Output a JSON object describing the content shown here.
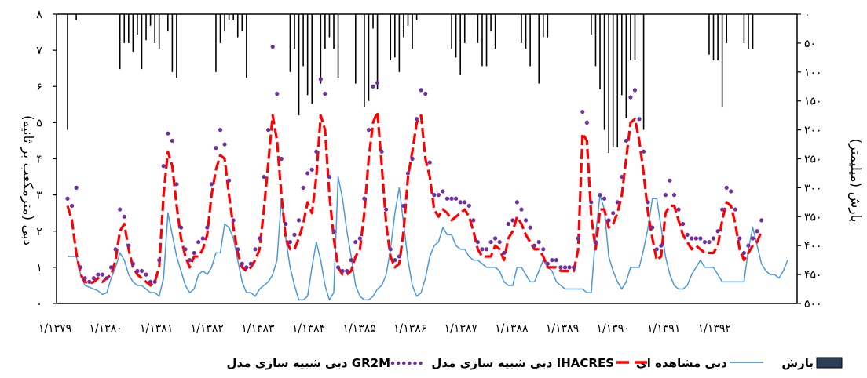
{
  "chart_data": {
    "type": "line",
    "title": "",
    "ylabel_left": "دبی (مترمکعب بر ثانیه)",
    "ylabel_right": "بارش (میلیمتر)",
    "ylim_left": [
      0,
      8
    ],
    "ylim_right_inverted": [
      0,
      500
    ],
    "yticks_left": [
      "۰",
      "۱",
      "۲",
      "۳",
      "۴",
      "۵",
      "۶",
      "۷",
      "۸"
    ],
    "yticks_right": [
      "۰",
      "۵۰",
      "۱۰۰",
      "۱۵۰",
      "۲۰۰",
      "۲۵۰",
      "۳۰۰",
      "۳۵۰",
      "۴۰۰",
      "۴۵۰",
      "۵۰۰"
    ],
    "x_tick_labels": [
      "۱/۱۳۷۹",
      "۱/۱۳۸۰",
      "۱/۱۳۸۱",
      "۱/۱۳۸۲",
      "۱/۱۳۸۳",
      "۱/۱۳۸۴",
      "۱/۱۳۸۵",
      "۱/۱۳۸۶",
      "۱/۱۳۸۷",
      "۱/۱۳۸۸",
      "۱/۱۳۸۹",
      "۱/۱۳۹۰",
      "۱/۱۳۹۱",
      "۱/۱۳۹۲"
    ],
    "legend": {
      "gr2m": "دبی شبیه سازی مدل GR2M",
      "ihacres": "دبی شبیه سازی مدل IHACRES",
      "observed": "دبی مشاهده ای",
      "rain": "بارش"
    },
    "colors": {
      "observed": "#4a98e0",
      "ihacres": "#ff0000",
      "gr2m": "#7030a0",
      "rain": "#000000",
      "legend_rain_fill": "#2c3e5a"
    },
    "grid": false,
    "series": [
      {
        "name": "دبی مشاهده ای",
        "values": [
          1.3,
          1.3,
          1.3,
          0.8,
          0.5,
          0.45,
          0.4,
          0.35,
          0.25,
          0.3,
          0.7,
          1.0,
          1.4,
          1.2,
          0.8,
          0.6,
          0.5,
          0.5,
          0.4,
          0.3,
          0.3,
          0.2,
          0.7,
          2.5,
          1.9,
          1.3,
          0.9,
          0.5,
          0.3,
          0.4,
          0.8,
          0.9,
          0.8,
          1.0,
          1.4,
          1.4,
          2.2,
          2.1,
          1.8,
          1.2,
          0.6,
          0.3,
          0.3,
          0.2,
          0.4,
          0.5,
          0.6,
          0.8,
          1.2,
          2.9,
          1.8,
          1.0,
          0.5,
          0.1,
          0.1,
          0.2,
          1.0,
          1.7,
          1.2,
          0.5,
          0.1,
          0.3,
          3.5,
          2.9,
          2.0,
          1.3,
          0.5,
          0.2,
          0.1,
          0.1,
          0.2,
          0.4,
          0.5,
          0.8,
          1.5,
          2.5,
          3.2,
          2.2,
          1.2,
          0.5,
          0.2,
          0.3,
          0.7,
          1.3,
          1.6,
          1.7,
          2.1,
          1.9,
          1.9,
          1.6,
          1.5,
          1.5,
          1.3,
          1.2,
          1.2,
          1.1,
          1.0,
          1.0,
          1.0,
          0.9,
          0.6,
          0.5,
          0.5,
          1.0,
          1.0,
          0.8,
          0.6,
          0.6,
          0.9,
          1.2,
          1.0,
          0.9,
          0.6,
          0.5,
          0.4,
          0.4,
          0.4,
          0.4,
          0.4,
          0.3,
          0.3,
          1.9,
          3.0,
          2.6,
          1.3,
          0.9,
          0.6,
          0.4,
          0.6,
          1.0,
          1.0,
          1.0,
          1.5,
          2.1,
          2.9,
          2.9,
          2.1,
          1.3,
          0.8,
          0.5,
          0.4,
          0.4,
          0.5,
          0.8,
          1.0,
          1.2,
          1.0,
          1.0,
          1.0,
          0.8,
          0.6,
          0.6,
          0.6,
          0.6,
          0.6,
          0.6,
          1.5,
          2.1,
          1.6,
          1.1,
          0.9,
          0.8,
          0.8,
          0.7,
          0.9,
          1.2
        ]
      },
      {
        "name": "دبی شبیه سازی مدل IHACRES",
        "values": [
          2.7,
          2.3,
          1.4,
          0.8,
          0.6,
          0.55,
          0.6,
          0.7,
          0.6,
          0.7,
          0.8,
          1.2,
          2.0,
          2.2,
          1.5,
          1.0,
          0.8,
          0.7,
          0.6,
          0.5,
          0.6,
          1.0,
          3.0,
          4.2,
          3.8,
          2.7,
          1.8,
          1.3,
          1.0,
          1.3,
          1.3,
          1.5,
          1.9,
          3.0,
          3.7,
          4.1,
          4.0,
          3.0,
          2.1,
          1.4,
          1.0,
          0.9,
          1.0,
          1.2,
          1.5,
          2.6,
          3.9,
          5.2,
          4.5,
          3.0,
          1.8,
          1.5,
          1.5,
          1.8,
          2.2,
          2.8,
          2.5,
          3.5,
          5.2,
          4.8,
          3.0,
          1.8,
          1.0,
          0.8,
          0.8,
          0.9,
          1.3,
          1.5,
          2.5,
          4.0,
          5.0,
          5.3,
          3.8,
          2.2,
          1.3,
          1.0,
          1.1,
          2.0,
          3.5,
          4.2,
          5.0,
          5.2,
          4.0,
          3.5,
          2.6,
          2.4,
          2.6,
          2.5,
          2.3,
          2.4,
          2.5,
          2.6,
          2.4,
          2.0,
          1.5,
          1.3,
          1.3,
          1.3,
          1.6,
          1.5,
          1.2,
          1.8,
          2.0,
          2.4,
          2.2,
          1.9,
          1.7,
          1.5,
          1.5,
          1.3,
          1.0,
          1.0,
          1.0,
          0.9,
          0.9,
          0.9,
          0.9,
          1.5,
          4.7,
          4.5,
          2.4,
          1.5,
          2.6,
          2.6,
          2.1,
          2.2,
          2.5,
          3.0,
          4.0,
          5.0,
          5.1,
          4.5,
          3.6,
          2.5,
          1.8,
          1.2,
          1.3,
          2.5,
          2.7,
          2.7,
          2.3,
          1.9,
          1.7,
          1.5,
          1.6,
          1.5,
          1.4,
          1.4,
          1.4,
          1.6,
          2.3,
          2.8,
          2.7,
          2.2,
          1.5,
          1.2,
          1.4,
          1.6,
          1.7,
          2.0
        ]
      },
      {
        "name": "دبی شبیه سازی مدل GR2M",
        "values": [
          2.9,
          2.7,
          3.2,
          1.0,
          0.7,
          0.6,
          0.7,
          0.8,
          0.8,
          0.7,
          1.0,
          1.5,
          2.6,
          2.4,
          1.6,
          1.1,
          0.9,
          0.9,
          0.8,
          0.6,
          0.6,
          1.2,
          3.8,
          4.7,
          4.5,
          3.3,
          2.1,
          1.5,
          1.2,
          1.4,
          1.7,
          1.8,
          2.1,
          3.3,
          4.3,
          4.8,
          4.4,
          3.4,
          2.3,
          1.5,
          1.1,
          1.0,
          1.1,
          1.5,
          1.8,
          3.5,
          4.8,
          7.1,
          5.8,
          4.0,
          2.2,
          1.7,
          1.9,
          2.3,
          3.2,
          3.6,
          3.7,
          4.2,
          6.2,
          5.8,
          3.5,
          2.0,
          1.0,
          0.9,
          0.9,
          1.2,
          1.7,
          1.8,
          2.9,
          4.8,
          6.0,
          6.1,
          4.2,
          2.6,
          1.5,
          1.2,
          1.3,
          2.7,
          3.6,
          4.0,
          5.1,
          5.9,
          5.8,
          3.9,
          3.0,
          3.0,
          3.1,
          2.9,
          2.9,
          2.9,
          2.8,
          2.8,
          2.7,
          2.3,
          1.7,
          1.5,
          1.5,
          1.7,
          1.8,
          1.7,
          1.4,
          2.2,
          2.3,
          2.8,
          2.6,
          2.3,
          2.1,
          1.6,
          1.7,
          1.5,
          1.1,
          1.2,
          1.2,
          1.0,
          1.0,
          1.0,
          1.0,
          1.8,
          5.3,
          5.0,
          2.8,
          1.7,
          3.0,
          2.9,
          2.3,
          2.5,
          2.8,
          3.5,
          4.5,
          5.7,
          5.9,
          5.1,
          4.2,
          2.8,
          2.1,
          1.5,
          1.6,
          3.0,
          3.4,
          3.0,
          2.6,
          2.2,
          1.9,
          1.8,
          1.8,
          1.8,
          1.7,
          1.7,
          1.8,
          2.0,
          2.6,
          3.2,
          3.1,
          2.6,
          1.8,
          1.4,
          1.6,
          1.8,
          2.0,
          2.3
        ]
      },
      {
        "name": "بارش",
        "values": [
          200,
          0,
          10,
          0,
          0,
          0,
          0,
          0,
          0,
          0,
          0,
          0,
          95,
          50,
          50,
          65,
          35,
          95,
          45,
          20,
          50,
          60,
          0,
          30,
          100,
          110,
          0,
          0,
          0,
          0,
          0,
          0,
          0,
          0,
          100,
          50,
          30,
          10,
          10,
          40,
          30,
          110,
          0,
          0,
          0,
          0,
          0,
          0,
          0,
          0,
          0,
          100,
          60,
          175,
          90,
          140,
          155,
          0,
          120,
          60,
          40,
          60,
          110,
          0,
          0,
          0,
          120,
          0,
          160,
          150,
          25,
          130,
          0,
          0,
          80,
          75,
          100,
          40,
          20,
          60,
          10,
          0,
          0,
          0,
          0,
          0,
          0,
          0,
          60,
          75,
          105,
          50,
          0,
          0,
          50,
          90,
          90,
          30,
          60,
          0,
          0,
          0,
          0,
          0,
          50,
          60,
          90,
          0,
          120,
          40,
          40,
          0,
          0,
          0,
          0,
          0,
          0,
          0,
          0,
          0,
          35,
          90,
          130,
          200,
          240,
          230,
          230,
          140,
          180,
          80,
          80,
          0,
          200,
          0,
          0,
          0,
          0,
          0,
          0,
          0,
          0,
          0,
          0,
          0,
          0,
          0,
          0,
          70,
          80,
          80,
          160,
          50,
          0,
          0,
          0,
          50,
          60,
          60,
          0,
          0,
          0,
          0,
          0
        ]
      }
    ]
  }
}
